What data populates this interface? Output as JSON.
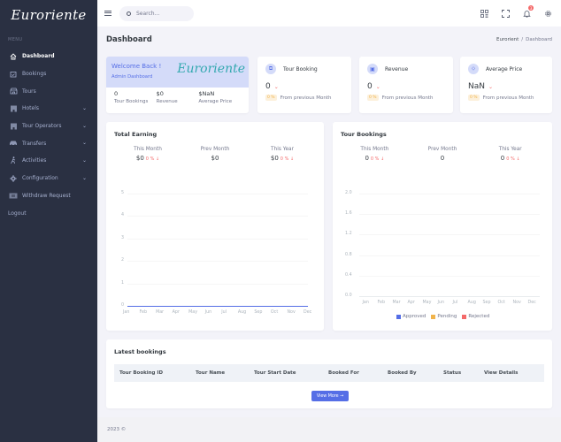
{
  "sidebar": {
    "logo": "Euroriente",
    "menu_title": "MENU",
    "items": [
      {
        "label": "Dashboard",
        "icon": "home-icon",
        "active": true
      },
      {
        "label": "Bookings",
        "icon": "calendar-check-icon"
      },
      {
        "label": "Tours",
        "icon": "store-icon"
      },
      {
        "label": "Hotels",
        "icon": "building-icon",
        "has_submenu": true
      },
      {
        "label": "Tour Operators",
        "icon": "building-icon",
        "has_submenu": true
      },
      {
        "label": "Transfers",
        "icon": "car-icon",
        "has_submenu": true
      },
      {
        "label": "Activities",
        "icon": "walk-icon",
        "has_submenu": true
      },
      {
        "label": "Configuration",
        "icon": "cog-icon",
        "has_submenu": true
      },
      {
        "label": "Withdraw Request",
        "icon": "money-icon"
      }
    ],
    "logout": "Logout"
  },
  "topbar": {
    "search_placeholder": "Search...",
    "notification_count": "3"
  },
  "page": {
    "title": "Dashboard",
    "breadcrumb": [
      "Eurorient",
      "Dashboard"
    ]
  },
  "welcome": {
    "title": "Welcome Back !",
    "subtitle": "Admin Dashboard",
    "logo_text": "Euroriente",
    "stats": [
      {
        "value": "0",
        "label": "Tour Bookings"
      },
      {
        "value": "$0",
        "label": "Revenue"
      },
      {
        "value": "$NaN",
        "label": "Average Price"
      }
    ]
  },
  "mini_cards": [
    {
      "title": "Tour Booking",
      "value": "0",
      "pct": "0 %",
      "footer": "From previous Month"
    },
    {
      "title": "Revenue",
      "value": "0",
      "pct": "0 %",
      "footer": "From previous Month"
    },
    {
      "title": "Average Price",
      "value": "NaN",
      "pct": "0 %",
      "footer": "From previous Month"
    }
  ],
  "total_earning": {
    "title": "Total Earning",
    "cols": [
      {
        "label": "This Month",
        "value": "$0",
        "pct": "0 % ↓"
      },
      {
        "label": "Prev Month",
        "value": "$0",
        "pct": ""
      },
      {
        "label": "This Year",
        "value": "$0",
        "pct": "0 % ↓"
      }
    ]
  },
  "tour_bookings": {
    "title": "Tour Bookings",
    "cols": [
      {
        "label": "This Month",
        "value": "0",
        "pct": "0 % ↓"
      },
      {
        "label": "Prev Month",
        "value": "0",
        "pct": ""
      },
      {
        "label": "This Year",
        "value": "0",
        "pct": "0 % ↓"
      }
    ]
  },
  "chart_data": [
    {
      "type": "line",
      "title": "Total Earning",
      "categories": [
        "Jan",
        "Feb",
        "Mar",
        "Apr",
        "May",
        "Jun",
        "Jul",
        "Aug",
        "Sep",
        "Oct",
        "Nov",
        "Dec"
      ],
      "series": [
        {
          "name": "Earning",
          "values": [
            0,
            0,
            0,
            0,
            0,
            0,
            0,
            0,
            0,
            0,
            0,
            0
          ],
          "color": "#556ee6"
        }
      ],
      "yticks": [
        "0",
        "1",
        "2",
        "3",
        "4",
        "5"
      ],
      "ylim": [
        0,
        5
      ],
      "grid": true
    },
    {
      "type": "bar",
      "title": "Tour Bookings",
      "categories": [
        "Jan",
        "Feb",
        "Mar",
        "Apr",
        "May",
        "Jun",
        "Jul",
        "Aug",
        "Sep",
        "Oct",
        "Nov",
        "Dec"
      ],
      "series": [
        {
          "name": "Approved",
          "values": [
            0,
            0,
            0,
            0,
            0,
            0,
            0,
            0,
            0,
            0,
            0,
            0
          ],
          "color": "#556ee6"
        },
        {
          "name": "Pending",
          "values": [
            0,
            0,
            0,
            0,
            0,
            0,
            0,
            0,
            0,
            0,
            0,
            0
          ],
          "color": "#f1b44c"
        },
        {
          "name": "Rejected",
          "values": [
            0,
            0,
            0,
            0,
            0,
            0,
            0,
            0,
            0,
            0,
            0,
            0
          ],
          "color": "#f46a6a"
        }
      ],
      "yticks": [
        "0.0",
        "0.4",
        "0.8",
        "1.2",
        "1.6",
        "2.0"
      ],
      "ylim": [
        0,
        2.0
      ],
      "grid": true,
      "legend_position": "bottom"
    }
  ],
  "latest": {
    "title": "Latest bookings",
    "columns": [
      "Tour Booking ID",
      "Tour Name",
      "Tour Start Date",
      "Booked For",
      "Booked By",
      "Status",
      "View Details"
    ],
    "rows": [],
    "view_more": "View More →"
  },
  "footer": {
    "text": "2023 ©"
  }
}
